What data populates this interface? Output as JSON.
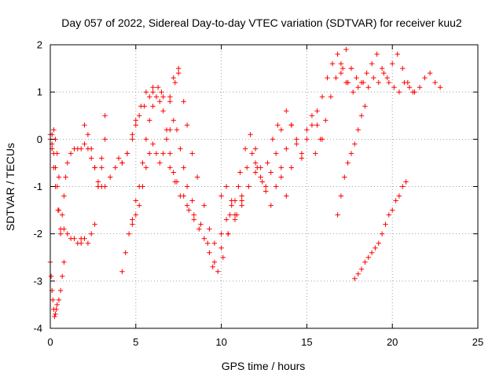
{
  "chart_data": {
    "type": "scatter",
    "title": "Day 057 of 2022, Sidereal Day-to-day VTEC variation (SDTVAR) for receiver kuu2",
    "xlabel": "GPS time / hours",
    "ylabel": "SDTVAR / TECUs",
    "xlim": [
      0,
      25
    ],
    "ylim": [
      -4,
      2
    ],
    "xticks": [
      0,
      5,
      10,
      15,
      20,
      25
    ],
    "yticks": [
      -4,
      -3,
      -2,
      -1,
      0,
      1,
      2
    ],
    "grid": true,
    "marker": "+",
    "series": [
      {
        "color": "#ff0000",
        "tracks": [
          {
            "x": [
              0.0,
              0.1,
              0.2,
              0.3,
              0.45,
              0.6,
              0.8,
              1.0,
              1.2,
              1.4,
              1.6,
              1.8
            ],
            "y": [
              0.0,
              -0.2,
              -0.6,
              -1.0,
              -1.5,
              -2.0,
              -1.9,
              -2.0,
              -2.1,
              -2.1,
              -2.2,
              -2.1
            ]
          },
          {
            "x": [
              1.8,
              2.0,
              2.2,
              2.4,
              2.6,
              2.8,
              3.0,
              3.2
            ],
            "y": [
              -2.2,
              -2.1,
              -2.2,
              -2.0,
              -1.8,
              -1.0,
              -0.4,
              0.5
            ]
          },
          {
            "x": [
              0.0,
              0.1,
              0.2,
              0.3,
              0.4,
              0.5,
              0.6,
              0.7,
              0.8,
              0.9,
              1.0,
              1.2,
              1.4,
              1.6,
              1.8,
              2.0,
              2.2,
              2.4,
              2.6,
              2.8,
              3.0
            ],
            "y": [
              0.1,
              -0.1,
              -0.3,
              -0.6,
              -1.0,
              -1.5,
              -1.9,
              -1.6,
              -1.2,
              -0.8,
              -0.5,
              -0.3,
              -0.2,
              -0.2,
              -0.2,
              -0.1,
              -0.2,
              -0.4,
              -0.6,
              -0.9,
              -1.0
            ]
          },
          {
            "x": [
              0.0,
              0.05,
              0.1,
              0.15,
              0.2,
              0.25,
              0.3,
              0.35,
              0.4,
              0.5,
              0.6,
              0.7,
              0.8
            ],
            "y": [
              -2.6,
              -2.9,
              -3.2,
              -3.4,
              -3.6,
              -3.75,
              -3.7,
              -3.6,
              -3.5,
              -3.4,
              -3.2,
              -2.9,
              -2.6
            ]
          },
          {
            "x": [
              0.1,
              0.2,
              0.3,
              0.4,
              0.5
            ],
            "y": [
              0.1,
              0.2,
              0.0,
              -0.3,
              -0.8
            ]
          },
          {
            "x": [
              2.0,
              2.2,
              2.4,
              2.6,
              2.8,
              3.0,
              3.2
            ],
            "y": [
              0.3,
              0.1,
              -0.2,
              -0.6,
              -1.0,
              -0.6,
              0.0
            ]
          },
          {
            "x": [
              3.2,
              3.5,
              3.8,
              4.0,
              4.2,
              4.5,
              4.8,
              5.0,
              5.2,
              5.5,
              5.8,
              6.0,
              6.3,
              6.6,
              7.0
            ],
            "y": [
              -1.0,
              -0.8,
              -0.6,
              -0.4,
              -0.5,
              -0.3,
              0.0,
              0.3,
              0.5,
              0.7,
              0.9,
              1.0,
              1.1,
              0.9,
              0.8
            ]
          },
          {
            "x": [
              4.2,
              4.5,
              4.8,
              5.0,
              5.3,
              5.6,
              6.0,
              6.5,
              7.0,
              7.3,
              7.5
            ],
            "y": [
              -0.5,
              -0.3,
              0.1,
              0.4,
              0.7,
              1.0,
              1.1,
              1.0,
              0.9,
              1.2,
              1.5
            ]
          },
          {
            "x": [
              4.2,
              4.4,
              4.6,
              4.8,
              5.0,
              5.2,
              5.4,
              5.6,
              5.8,
              6.0,
              6.2,
              6.4,
              6.6,
              6.8,
              7.0,
              7.2,
              7.4
            ],
            "y": [
              -2.8,
              -2.4,
              -2.0,
              -1.7,
              -1.3,
              -1.0,
              -0.5,
              0.0,
              0.4,
              0.7,
              0.9,
              0.8,
              0.6,
              0.2,
              -0.3,
              -0.7,
              -0.9
            ]
          },
          {
            "x": [
              4.8,
              5.0,
              5.2,
              5.4,
              5.6,
              5.8,
              6.0,
              6.2,
              6.4,
              6.6,
              6.8,
              7.0,
              7.2,
              7.4,
              7.6,
              7.8,
              8.0,
              8.3
            ],
            "y": [
              -1.8,
              -1.6,
              -1.4,
              -1.0,
              -0.6,
              -0.3,
              -0.1,
              -0.3,
              -0.5,
              -0.3,
              0.0,
              0.2,
              0.4,
              0.2,
              -0.2,
              -0.6,
              -1.0,
              -1.3
            ]
          },
          {
            "x": [
              7.2,
              7.5,
              7.8,
              8.0,
              8.3,
              8.6,
              9.0,
              9.3,
              9.6,
              10.0,
              10.3,
              10.6,
              11.0
            ],
            "y": [
              1.3,
              1.4,
              0.8,
              0.3,
              -0.3,
              -0.8,
              -1.4,
              -1.9,
              -2.2,
              -2.0,
              -1.7,
              -1.4,
              -1.0
            ]
          },
          {
            "x": [
              7.0,
              7.3,
              7.6,
              8.0,
              8.4,
              8.8,
              9.2,
              9.5,
              9.8,
              10.1,
              10.4,
              10.8,
              11.2,
              11.6,
              12.0
            ],
            "y": [
              -0.6,
              -0.9,
              -1.2,
              -1.4,
              -1.6,
              -1.8,
              -2.2,
              -2.7,
              -2.8,
              -2.5,
              -2.0,
              -1.7,
              -1.4,
              -1.0,
              -0.7
            ]
          },
          {
            "x": [
              7.8,
              8.1,
              8.4,
              8.7,
              9.0,
              9.3,
              9.6,
              10.0,
              10.4,
              10.8,
              11.2
            ],
            "y": [
              -1.2,
              -1.5,
              -1.7,
              -1.9,
              -2.1,
              -2.4,
              -2.6,
              -2.3,
              -2.0,
              -1.6,
              -1.3
            ]
          },
          {
            "x": [
              10.0,
              10.3,
              10.6,
              10.9,
              11.2,
              11.5,
              11.8,
              12.1,
              12.4,
              12.7,
              13.0,
              13.3
            ],
            "y": [
              -1.2,
              -1.0,
              -1.3,
              -1.6,
              -1.2,
              -0.6,
              -0.3,
              -0.6,
              -0.9,
              -0.5,
              0.0,
              0.3
            ]
          },
          {
            "x": [
              10.5,
              10.8,
              11.1,
              11.4,
              11.7,
              12.0,
              12.3,
              12.6,
              12.9,
              13.2,
              13.5,
              13.8,
              14.1
            ],
            "y": [
              -1.6,
              -1.3,
              -0.7,
              -0.2,
              0.1,
              -0.2,
              -0.6,
              -1.0,
              -0.7,
              -0.3,
              -0.8,
              -1.2,
              -0.6
            ]
          },
          {
            "x": [
              12.0,
              12.3,
              12.6,
              12.9,
              13.2,
              13.5,
              13.8,
              14.1,
              14.4,
              14.7,
              15.0,
              15.3,
              15.6,
              15.9
            ],
            "y": [
              -0.5,
              -0.8,
              -1.1,
              -1.4,
              -1.0,
              -0.6,
              -0.2,
              0.3,
              0.0,
              -0.3,
              0.2,
              0.5,
              0.3,
              0.0
            ]
          },
          {
            "x": [
              13.5,
              13.8,
              14.1,
              14.4,
              14.7,
              15.0,
              15.3,
              15.6,
              15.9,
              16.2,
              16.5,
              16.8,
              17.1,
              17.4
            ],
            "y": [
              0.2,
              0.6,
              0.3,
              -0.1,
              -0.4,
              0.0,
              0.3,
              0.6,
              0.9,
              1.3,
              1.6,
              1.8,
              1.5,
              1.2
            ]
          },
          {
            "x": [
              15.5,
              15.8,
              16.1,
              16.4,
              16.7,
              17.0,
              17.3,
              17.6
            ],
            "y": [
              -0.3,
              0.0,
              0.4,
              0.9,
              1.3,
              1.6,
              1.9,
              1.5
            ]
          },
          {
            "x": [
              17.4,
              17.7,
              18.0,
              18.3,
              18.6,
              18.9,
              19.2,
              19.5,
              19.8,
              20.1,
              20.4,
              20.7,
              21.0,
              21.3,
              21.6,
              21.9,
              22.2,
              22.5,
              22.8
            ],
            "y": [
              1.2,
              1.0,
              1.1,
              1.2,
              1.1,
              1.3,
              1.2,
              1.4,
              1.2,
              1.1,
              1.0,
              1.2,
              1.1,
              1.0,
              1.1,
              1.3,
              1.4,
              1.2,
              1.1
            ]
          },
          {
            "x": [
              17.0,
              17.3,
              17.6,
              17.9,
              18.2,
              18.5,
              18.8,
              19.1,
              19.4,
              19.7,
              20.0,
              20.3,
              20.6,
              20.9,
              21.2
            ],
            "y": [
              1.4,
              1.2,
              1.5,
              1.3,
              1.2,
              1.4,
              1.6,
              1.8,
              1.5,
              1.3,
              1.6,
              1.8,
              1.5,
              1.2,
              1.0
            ]
          },
          {
            "x": [
              16.8,
              17.0,
              17.2,
              17.4,
              17.6,
              17.8,
              18.0,
              18.2,
              18.4
            ],
            "y": [
              -1.6,
              -1.2,
              -0.8,
              -0.5,
              -0.3,
              -0.1,
              0.2,
              0.5,
              0.7
            ]
          },
          {
            "x": [
              17.8,
              18.0,
              18.2,
              18.4,
              18.6,
              18.8,
              19.0,
              19.2,
              19.4,
              19.6,
              19.8,
              20.0,
              20.2,
              20.4,
              20.6,
              20.8
            ],
            "y": [
              -2.95,
              -2.85,
              -2.75,
              -2.6,
              -2.5,
              -2.4,
              -2.3,
              -2.2,
              -2.0,
              -1.8,
              -1.6,
              -1.5,
              -1.3,
              -1.2,
              -1.0,
              -0.9
            ]
          }
        ]
      }
    ]
  }
}
